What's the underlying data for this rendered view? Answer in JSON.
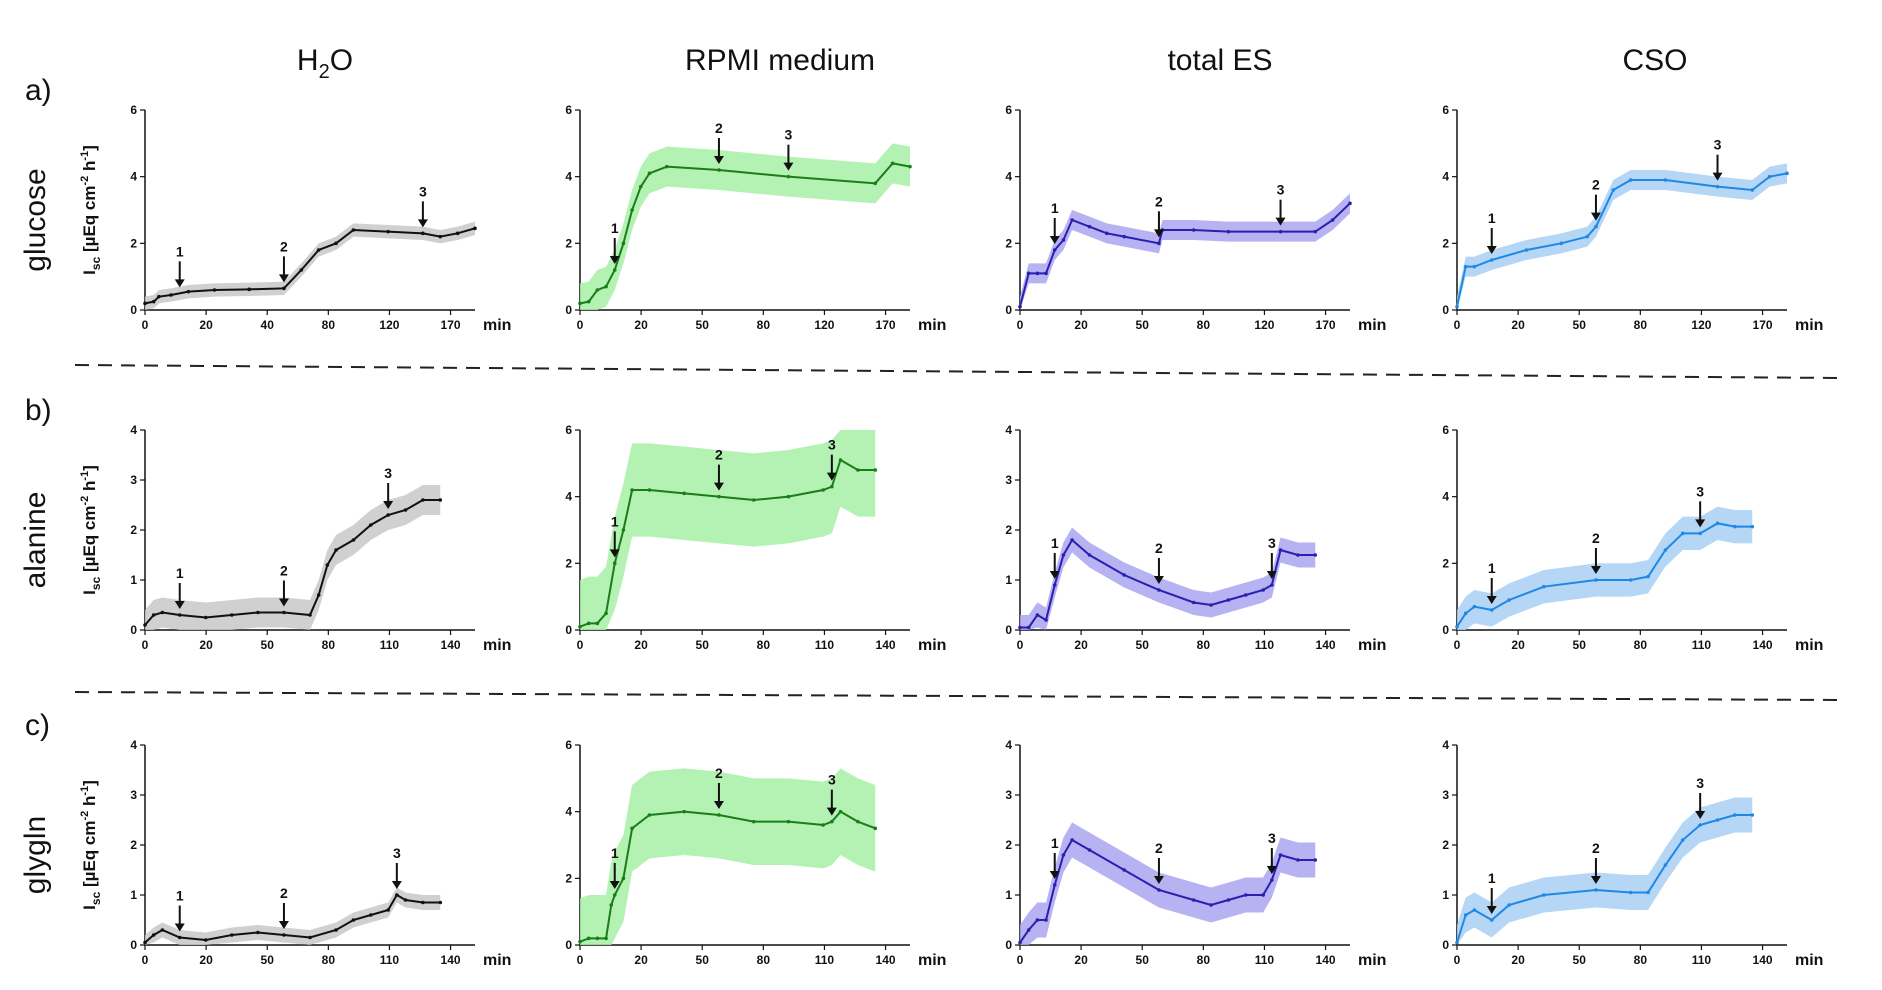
{
  "figure": {
    "columns": [
      {
        "title_main": "H",
        "title_sub": "2",
        "title_rest": "O"
      },
      {
        "title_main": "RPMI medium",
        "title_sub": "",
        "title_rest": ""
      },
      {
        "title_main": "total ES",
        "title_sub": "",
        "title_rest": ""
      },
      {
        "title_main": "CSO",
        "title_sub": "",
        "title_rest": ""
      }
    ],
    "rows": [
      {
        "letter": "a)",
        "name": "glucose"
      },
      {
        "letter": "b)",
        "name": "alanine"
      },
      {
        "letter": "c)",
        "name": "glygln"
      }
    ],
    "y_axis_label": {
      "base": "I",
      "sub": "sc",
      "text1": " [µEq cm",
      "sup1": "-2",
      "text2": " h",
      "sup2": "-1",
      "text3": "]"
    },
    "x_unit": "min",
    "colors": {
      "H2O": "#111111",
      "RPMI": "#1a7d1a",
      "RPMI_band": "#a6f0a6",
      "ES": "#2a1fb0",
      "ES_band": "#aaa5ef",
      "CSO": "#1e88e5",
      "CSO_band": "#a9cff5",
      "H2O_band": "#c8c8c8"
    }
  },
  "chart_data": [
    {
      "type": "line",
      "row": "glucose",
      "column": "H2O",
      "xlabel": "min",
      "ylim": [
        0,
        6
      ],
      "yticks": [
        "0",
        "2",
        "4",
        "6"
      ],
      "xticks": [
        "0",
        "20",
        "40",
        "80",
        "120",
        "170"
      ],
      "arrows": [
        "1",
        "2",
        "3"
      ],
      "series": [
        {
          "name": "H2O",
          "x": [
            0,
            5,
            8,
            15,
            25,
            40,
            60,
            80,
            90,
            100,
            110,
            120,
            140,
            160,
            170,
            180,
            190
          ],
          "y": [
            0.2,
            0.25,
            0.4,
            0.45,
            0.55,
            0.6,
            0.62,
            0.65,
            1.2,
            1.8,
            2.0,
            2.4,
            2.35,
            2.3,
            2.2,
            2.3,
            2.45
          ],
          "band": 0.2
        }
      ]
    },
    {
      "type": "line",
      "row": "glucose",
      "column": "RPMI medium",
      "xlabel": "min",
      "ylim": [
        0,
        6
      ],
      "yticks": [
        "0",
        "2",
        "4",
        "6"
      ],
      "xticks": [
        "0",
        "20",
        "50",
        "80",
        "120",
        "170"
      ],
      "arrows": [
        "1",
        "2",
        "3"
      ],
      "series": [
        {
          "name": "RPMI",
          "x": [
            0,
            5,
            10,
            15,
            20,
            25,
            30,
            35,
            40,
            50,
            80,
            120,
            170,
            180,
            190
          ],
          "y": [
            0.2,
            0.25,
            0.6,
            0.7,
            1.2,
            2.0,
            3.0,
            3.7,
            4.1,
            4.3,
            4.2,
            4.0,
            3.8,
            4.4,
            4.3
          ],
          "band": 0.6
        }
      ]
    },
    {
      "type": "line",
      "row": "glucose",
      "column": "total ES",
      "xlabel": "min",
      "ylim": [
        0,
        6
      ],
      "yticks": [
        "0",
        "2",
        "4",
        "6"
      ],
      "xticks": [
        "0",
        "20",
        "50",
        "80",
        "120",
        "170"
      ],
      "arrows": [
        "1",
        "2",
        "3"
      ],
      "series": [
        {
          "name": "ES",
          "x": [
            0,
            5,
            10,
            15,
            20,
            25,
            30,
            40,
            50,
            60,
            80,
            82,
            100,
            120,
            150,
            170,
            180,
            190
          ],
          "y": [
            0.1,
            1.1,
            1.1,
            1.1,
            1.8,
            2.1,
            2.7,
            2.5,
            2.3,
            2.2,
            2.0,
            2.4,
            2.4,
            2.35,
            2.35,
            2.35,
            2.7,
            3.2
          ],
          "band": 0.3
        }
      ]
    },
    {
      "type": "line",
      "row": "glucose",
      "column": "CSO",
      "xlabel": "min",
      "ylim": [
        0,
        6
      ],
      "yticks": [
        "0",
        "2",
        "4",
        "6"
      ],
      "xticks": [
        "0",
        "20",
        "50",
        "80",
        "120",
        "170"
      ],
      "arrows": [
        "1",
        "2",
        "3"
      ],
      "series": [
        {
          "name": "CSO",
          "x": [
            0,
            5,
            10,
            20,
            40,
            60,
            75,
            80,
            90,
            100,
            120,
            150,
            170,
            180,
            190
          ],
          "y": [
            0.1,
            1.3,
            1.3,
            1.5,
            1.8,
            2.0,
            2.2,
            2.5,
            3.6,
            3.9,
            3.9,
            3.7,
            3.6,
            4.0,
            4.1
          ],
          "band": 0.3
        }
      ]
    },
    {
      "type": "line",
      "row": "alanine",
      "column": "H2O",
      "xlabel": "min",
      "ylim": [
        0,
        4
      ],
      "yticks": [
        "0",
        "1",
        "2",
        "3",
        "4"
      ],
      "xticks": [
        "0",
        "20",
        "50",
        "80",
        "110",
        "140"
      ],
      "arrows": [
        "1",
        "2",
        "3"
      ],
      "series": [
        {
          "name": "H2O",
          "x": [
            0,
            5,
            10,
            20,
            35,
            50,
            65,
            80,
            95,
            100,
            105,
            110,
            120,
            130,
            140,
            150,
            160,
            170
          ],
          "y": [
            0.1,
            0.3,
            0.35,
            0.3,
            0.25,
            0.3,
            0.35,
            0.35,
            0.3,
            0.7,
            1.3,
            1.6,
            1.8,
            2.1,
            2.3,
            2.4,
            2.6,
            2.6
          ],
          "band": 0.3
        }
      ]
    },
    {
      "type": "line",
      "row": "alanine",
      "column": "RPMI medium",
      "xlabel": "min",
      "ylim": [
        0,
        6
      ],
      "yticks": [
        "0",
        "2",
        "4",
        "6"
      ],
      "xticks": [
        "0",
        "20",
        "50",
        "80",
        "110",
        "140"
      ],
      "arrows": [
        "1",
        "2",
        "3"
      ],
      "series": [
        {
          "name": "RPMI",
          "x": [
            0,
            5,
            10,
            15,
            20,
            25,
            30,
            40,
            60,
            80,
            100,
            120,
            140,
            145,
            150,
            160,
            170
          ],
          "y": [
            0.1,
            0.2,
            0.2,
            0.5,
            2.0,
            3.0,
            4.2,
            4.2,
            4.1,
            4.0,
            3.9,
            4.0,
            4.2,
            4.3,
            5.1,
            4.8,
            4.8
          ],
          "band": 1.4
        }
      ]
    },
    {
      "type": "line",
      "row": "alanine",
      "column": "total ES",
      "xlabel": "min",
      "ylim": [
        0,
        4
      ],
      "yticks": [
        "0",
        "1",
        "2",
        "3",
        "4"
      ],
      "xticks": [
        "0",
        "20",
        "50",
        "80",
        "110",
        "140"
      ],
      "arrows": [
        "1",
        "2",
        "3"
      ],
      "series": [
        {
          "name": "ES",
          "x": [
            0,
            5,
            10,
            15,
            20,
            25,
            30,
            40,
            60,
            80,
            100,
            110,
            120,
            130,
            140,
            145,
            150,
            160,
            170
          ],
          "y": [
            0.05,
            0.05,
            0.3,
            0.2,
            0.9,
            1.5,
            1.8,
            1.5,
            1.1,
            0.8,
            0.55,
            0.5,
            0.6,
            0.7,
            0.8,
            0.9,
            1.6,
            1.5,
            1.5
          ],
          "band": 0.25
        }
      ]
    },
    {
      "type": "line",
      "row": "alanine",
      "column": "CSO",
      "xlabel": "min",
      "ylim": [
        0,
        6
      ],
      "yticks": [
        "0",
        "2",
        "4",
        "6"
      ],
      "xticks": [
        "0",
        "20",
        "50",
        "80",
        "110",
        "140"
      ],
      "arrows": [
        "1",
        "2",
        "3"
      ],
      "series": [
        {
          "name": "CSO",
          "x": [
            0,
            5,
            10,
            20,
            30,
            50,
            80,
            100,
            110,
            120,
            130,
            140,
            150,
            160,
            170
          ],
          "y": [
            0.1,
            0.5,
            0.7,
            0.6,
            0.9,
            1.3,
            1.5,
            1.5,
            1.6,
            2.4,
            2.9,
            2.9,
            3.2,
            3.1,
            3.1
          ],
          "band": 0.5
        }
      ]
    },
    {
      "type": "line",
      "row": "glygln",
      "column": "H2O",
      "xlabel": "min",
      "ylim": [
        0,
        4
      ],
      "yticks": [
        "0",
        "1",
        "2",
        "3",
        "4"
      ],
      "xticks": [
        "0",
        "20",
        "50",
        "80",
        "110",
        "140"
      ],
      "arrows": [
        "1",
        "2",
        "3"
      ],
      "series": [
        {
          "name": "H2O",
          "x": [
            0,
            5,
            10,
            20,
            35,
            50,
            65,
            80,
            95,
            110,
            120,
            130,
            140,
            145,
            150,
            160,
            170
          ],
          "y": [
            0.05,
            0.2,
            0.3,
            0.15,
            0.1,
            0.2,
            0.25,
            0.2,
            0.15,
            0.3,
            0.5,
            0.6,
            0.7,
            1.0,
            0.9,
            0.85,
            0.85
          ],
          "band": 0.15
        }
      ]
    },
    {
      "type": "line",
      "row": "glygln",
      "column": "RPMI medium",
      "xlabel": "min",
      "ylim": [
        0,
        6
      ],
      "yticks": [
        "0",
        "2",
        "4",
        "6"
      ],
      "xticks": [
        "0",
        "20",
        "50",
        "80",
        "110",
        "140"
      ],
      "arrows": [
        "1",
        "2",
        "3"
      ],
      "series": [
        {
          "name": "RPMI",
          "x": [
            0,
            5,
            10,
            15,
            18,
            20,
            25,
            30,
            40,
            60,
            80,
            100,
            120,
            140,
            145,
            150,
            160,
            170
          ],
          "y": [
            0.1,
            0.2,
            0.2,
            0.2,
            1.2,
            1.5,
            2.0,
            3.5,
            3.9,
            4.0,
            3.9,
            3.7,
            3.7,
            3.6,
            3.7,
            4.0,
            3.7,
            3.5
          ],
          "band": 1.3
        }
      ]
    },
    {
      "type": "line",
      "row": "glygln",
      "column": "total ES",
      "xlabel": "min",
      "ylim": [
        0,
        4
      ],
      "yticks": [
        "0",
        "1",
        "2",
        "3",
        "4"
      ],
      "xticks": [
        "0",
        "20",
        "50",
        "80",
        "110",
        "140"
      ],
      "arrows": [
        "1",
        "2",
        "3"
      ],
      "series": [
        {
          "name": "ES",
          "x": [
            0,
            5,
            10,
            15,
            20,
            25,
            30,
            40,
            60,
            80,
            100,
            110,
            120,
            130,
            140,
            145,
            150,
            160,
            170
          ],
          "y": [
            0.05,
            0.3,
            0.5,
            0.5,
            1.2,
            1.8,
            2.1,
            1.9,
            1.5,
            1.1,
            0.9,
            0.8,
            0.9,
            1.0,
            1.0,
            1.3,
            1.8,
            1.7,
            1.7
          ],
          "band": 0.35
        }
      ]
    },
    {
      "type": "line",
      "row": "glygln",
      "column": "CSO",
      "xlabel": "min",
      "ylim": [
        0,
        4
      ],
      "yticks": [
        "0",
        "1",
        "2",
        "3",
        "4"
      ],
      "xticks": [
        "0",
        "20",
        "50",
        "80",
        "110",
        "140"
      ],
      "arrows": [
        "1",
        "2",
        "3"
      ],
      "series": [
        {
          "name": "CSO",
          "x": [
            0,
            5,
            10,
            20,
            30,
            50,
            80,
            100,
            110,
            120,
            130,
            140,
            150,
            160,
            170
          ],
          "y": [
            0.05,
            0.6,
            0.7,
            0.5,
            0.8,
            1.0,
            1.1,
            1.05,
            1.05,
            1.6,
            2.1,
            2.4,
            2.5,
            2.6,
            2.6
          ],
          "band": 0.35
        }
      ]
    }
  ]
}
